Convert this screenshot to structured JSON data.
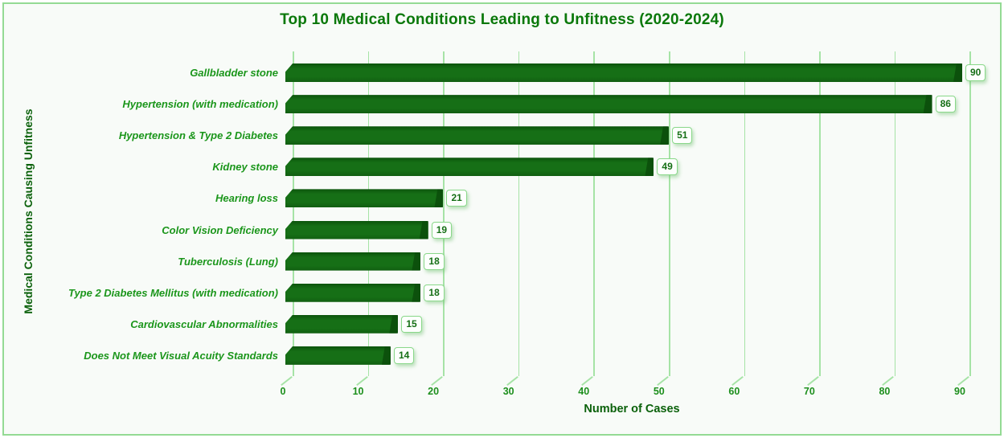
{
  "chart": {
    "title": "Top 10 Medical Conditions Leading to Unfitness (2020-2024)",
    "x_axis_title": "Number of Cases",
    "y_axis_title": "Medical Conditions Causing Unfitness"
  },
  "chart_data": {
    "type": "bar",
    "orientation": "horizontal",
    "title": "Top 10 Medical Conditions Leading to Unfitness (2020-2024)",
    "xlabel": "Number of Cases",
    "ylabel": "Medical Conditions Causing Unfitness",
    "categories": [
      "Gallbladder stone",
      "Hypertension (with medication)",
      "Hypertension & Type 2 Diabetes",
      "Kidney stone",
      "Hearing loss",
      "Color Vision Deficiency",
      "Tuberculosis (Lung)",
      "Type 2 Diabetes Mellitus (with medication)",
      "Cardiovascular Abnormalities",
      "Does Not Meet Visual Acuity Standards"
    ],
    "values": [
      90,
      86,
      51,
      49,
      21,
      19,
      18,
      18,
      15,
      14
    ],
    "xlim": [
      0,
      90
    ],
    "xticks": [
      0,
      10,
      20,
      30,
      40,
      50,
      60,
      70,
      80,
      90
    ],
    "grid": true,
    "value_labels": true,
    "legend": "none",
    "colors": {
      "bar": "#166f16",
      "bar_top": "#0b540b",
      "bar_bot": "#115e11",
      "bar_dark": "#0a4c0a",
      "gridline": "#a6e3a6",
      "title": "#0a780a",
      "category_label": "#1b961b",
      "axis_title": "#0b610b",
      "tick_label": "#1d8f1d",
      "value_text": "#166f16",
      "frame_border": "#94da94",
      "background": "#f8fbf8",
      "value_border": "#8ad88a"
    }
  }
}
